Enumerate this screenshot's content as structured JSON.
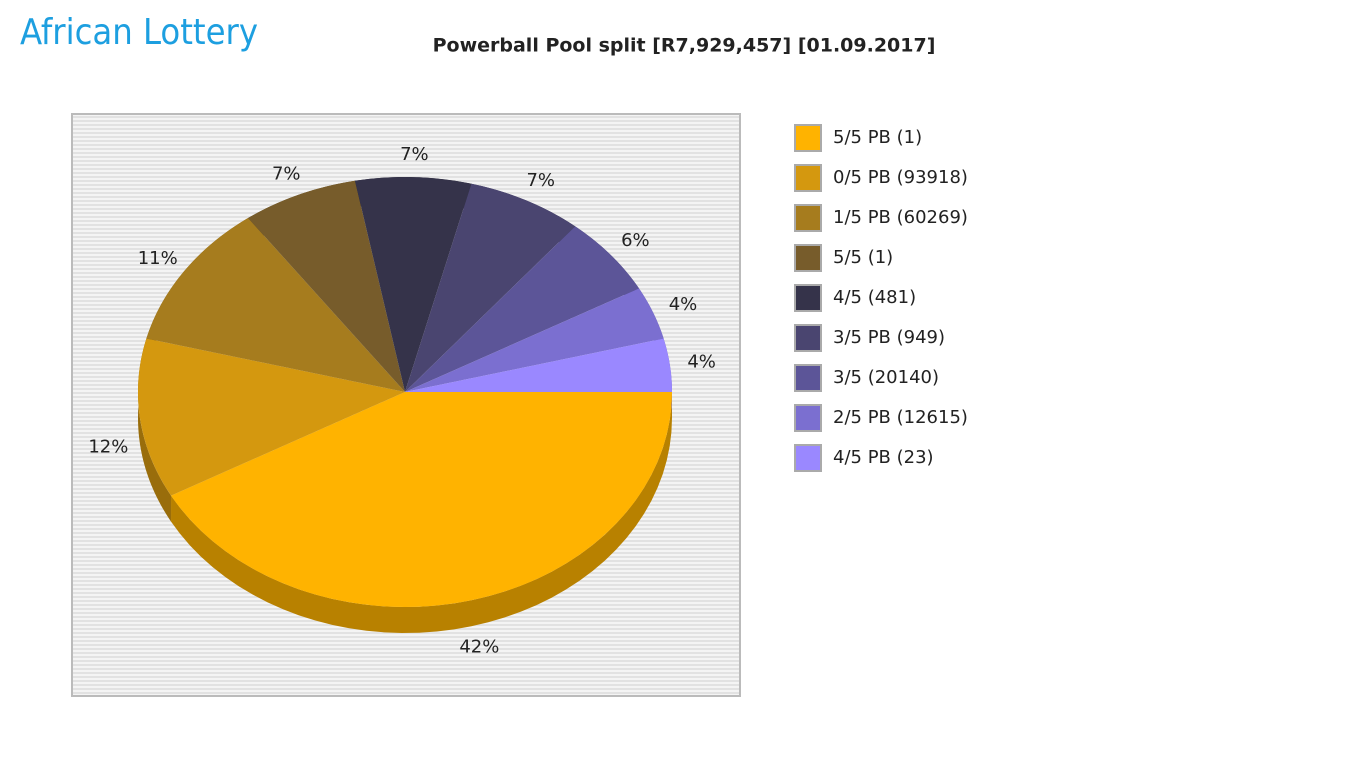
{
  "logo": "African Lottery",
  "chart_data": {
    "type": "pie",
    "title": "Powerball Pool split [R7,929,457] [01.09.2017]",
    "categories": [
      "5/5 PB (1)",
      "0/5 PB (93918)",
      "1/5 PB (60269)",
      "5/5 (1)",
      "4/5 (481)",
      "3/5 PB (949)",
      "3/5 (20140)",
      "2/5 PB (12615)",
      "4/5 PB (23)"
    ],
    "values": [
      42,
      12,
      11,
      7,
      7,
      7,
      6,
      4,
      4
    ],
    "value_labels": [
      "42%",
      "12%",
      "11%",
      "7%",
      "7%",
      "7%",
      "6%",
      "4%",
      "4%"
    ],
    "colors": [
      "#ffb300",
      "#d4980f",
      "#a67c1e",
      "#775c2b",
      "#35334a",
      "#4a4570",
      "#5c5598",
      "#7b6fd0",
      "#9a88ff"
    ]
  }
}
